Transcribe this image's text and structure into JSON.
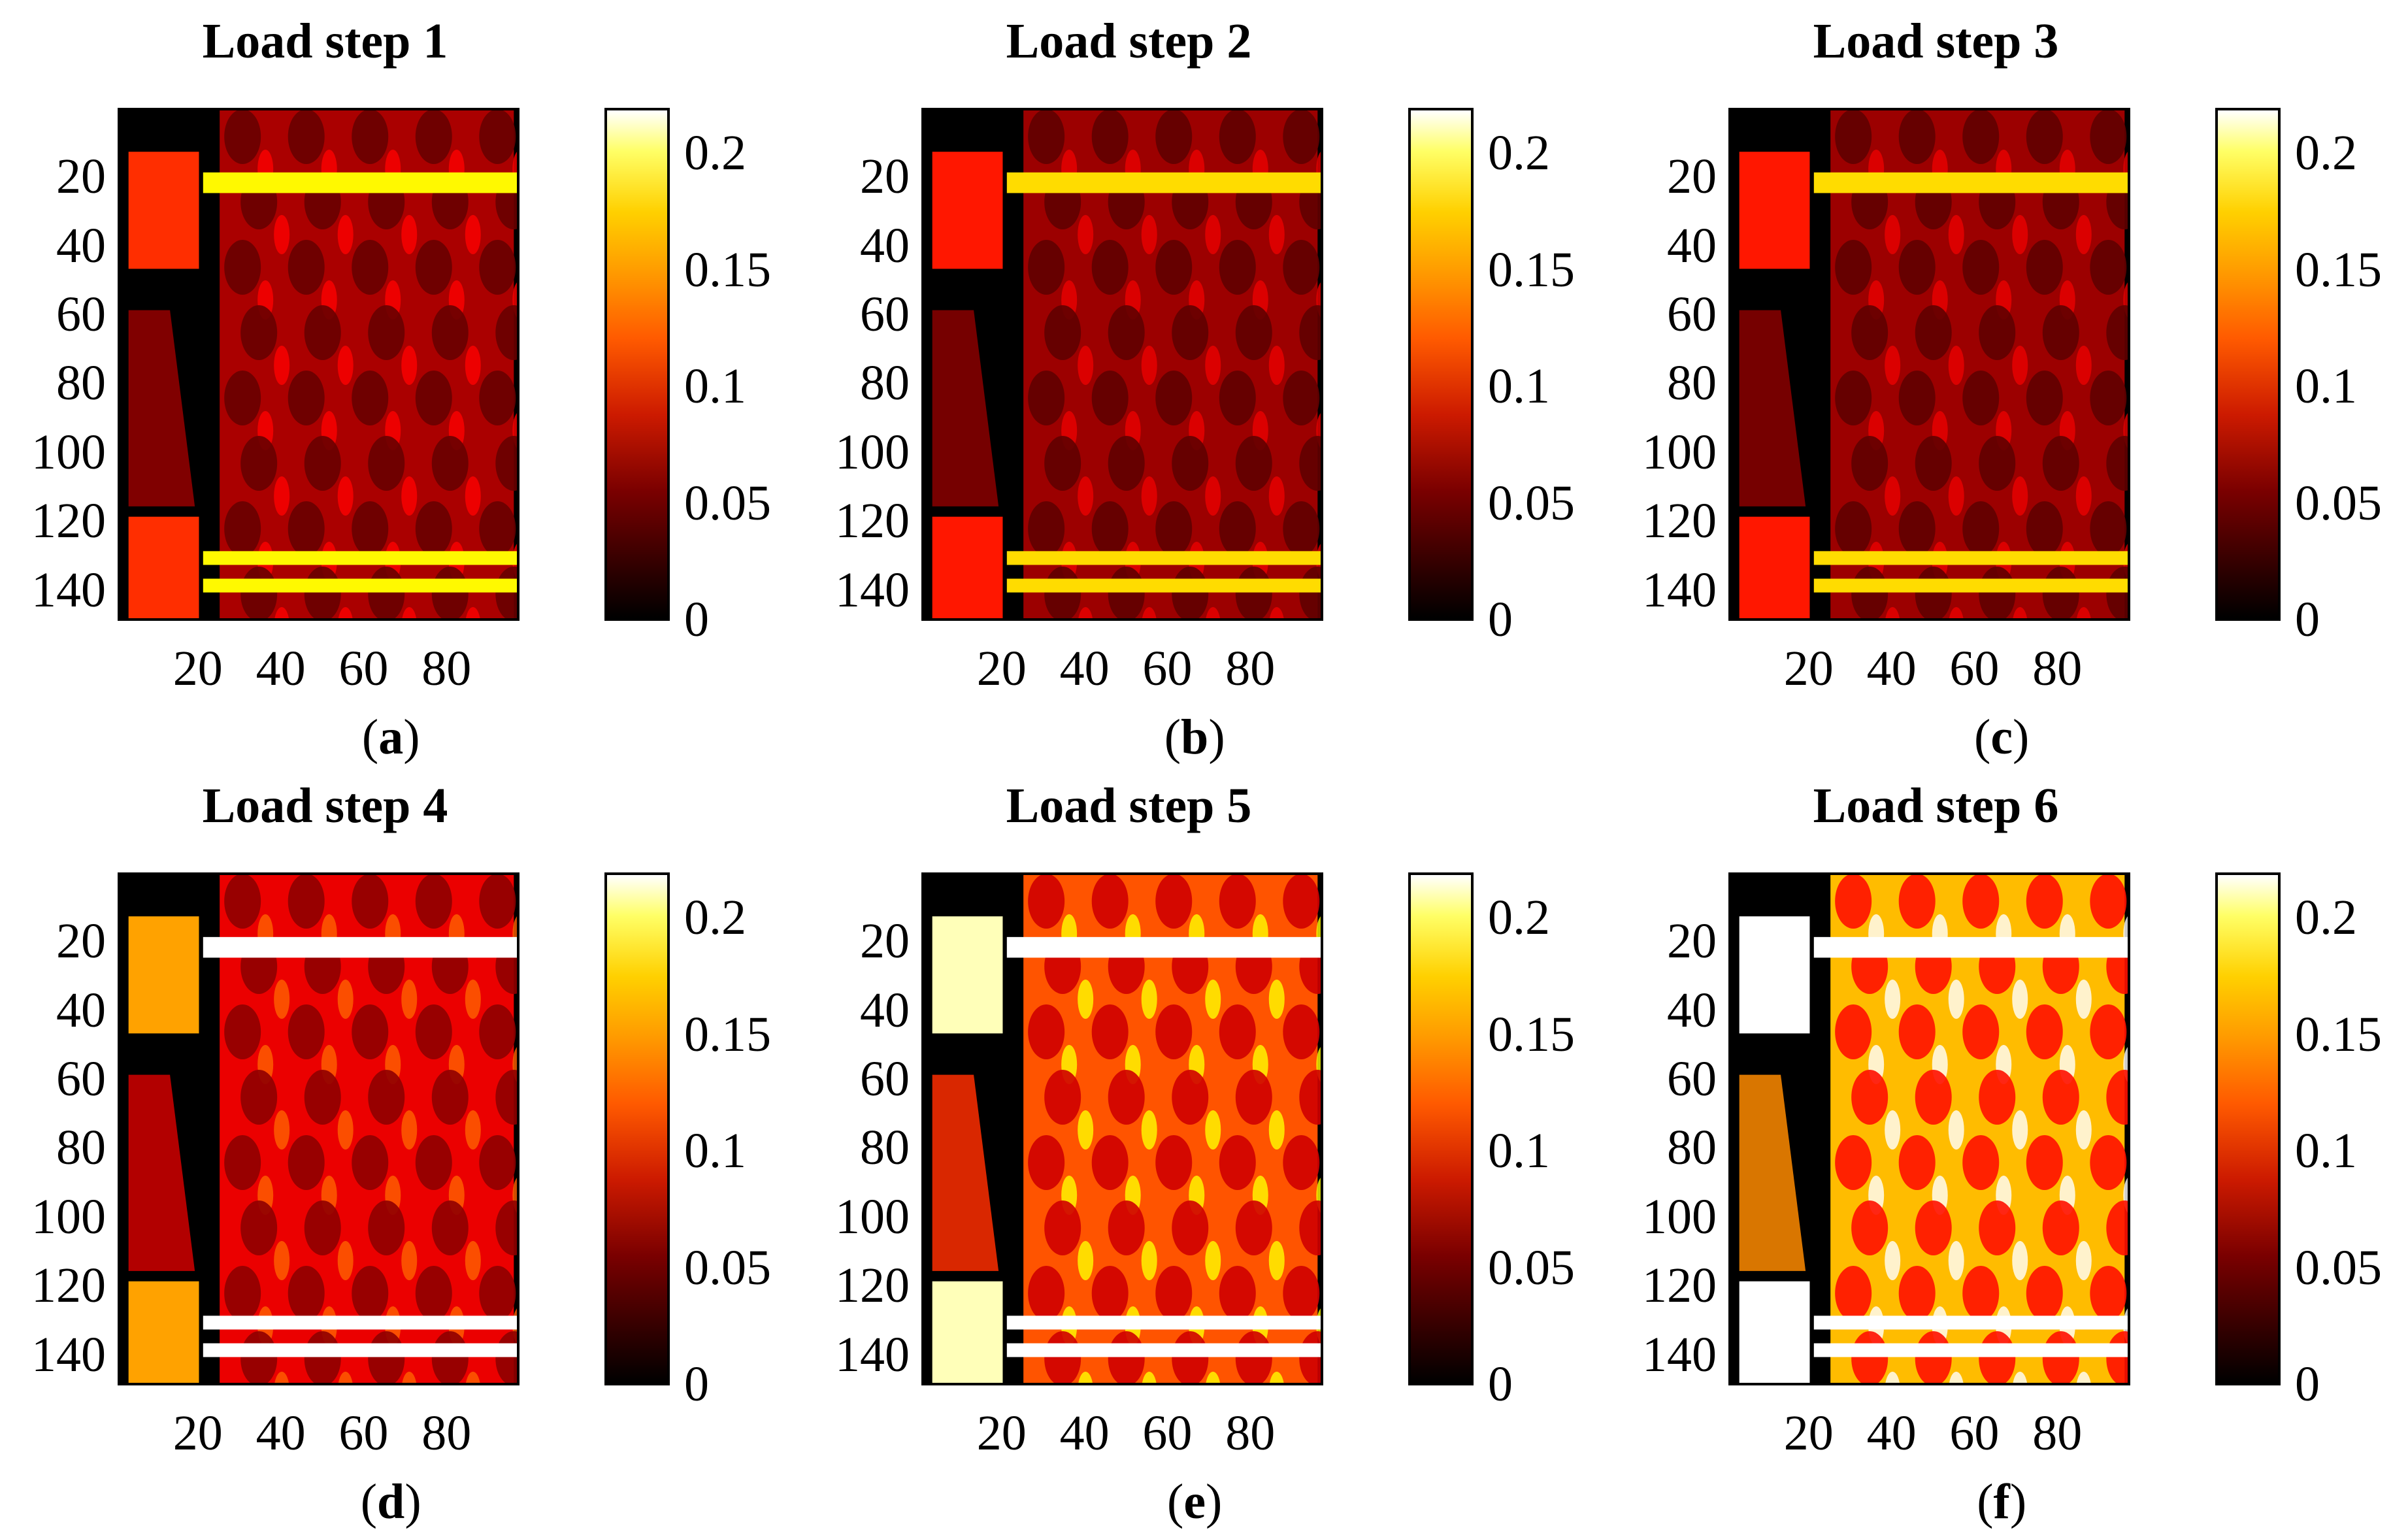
{
  "chart_data": [
    {
      "type": "heatmap",
      "title": "Load step 1",
      "panel_label": "a",
      "xticks": [
        "20",
        "40",
        "60",
        "80"
      ],
      "yticks": [
        "20",
        "40",
        "60",
        "80",
        "100",
        "120",
        "140"
      ],
      "xlim": [
        0,
        97
      ],
      "ylim": [
        0,
        149
      ],
      "colorbar": {
        "ticks": [
          "0",
          "0.05",
          "0.1",
          "0.15",
          "0.2"
        ],
        "range": [
          0,
          0.22
        ],
        "colormap": "hot"
      },
      "mean_level": 0.065
    },
    {
      "type": "heatmap",
      "title": "Load step 2",
      "panel_label": "b",
      "xticks": [
        "20",
        "40",
        "60",
        "80"
      ],
      "yticks": [
        "20",
        "40",
        "60",
        "80",
        "100",
        "120",
        "140"
      ],
      "xlim": [
        0,
        97
      ],
      "ylim": [
        0,
        149
      ],
      "colorbar": {
        "ticks": [
          "0",
          "0.05",
          "0.1",
          "0.15",
          "0.2"
        ],
        "range": [
          0,
          0.22
        ],
        "colormap": "hot"
      },
      "mean_level": 0.06
    },
    {
      "type": "heatmap",
      "title": "Load step 3",
      "panel_label": "c",
      "xticks": [
        "20",
        "40",
        "60",
        "80"
      ],
      "yticks": [
        "20",
        "40",
        "60",
        "80",
        "100",
        "120",
        "140"
      ],
      "xlim": [
        0,
        97
      ],
      "ylim": [
        0,
        149
      ],
      "colorbar": {
        "ticks": [
          "0",
          "0.05",
          "0.1",
          "0.15",
          "0.2"
        ],
        "range": [
          0,
          0.22
        ],
        "colormap": "hot"
      },
      "mean_level": 0.06
    },
    {
      "type": "heatmap",
      "title": "Load step 4",
      "panel_label": "d",
      "xticks": [
        "20",
        "40",
        "60",
        "80"
      ],
      "yticks": [
        "20",
        "40",
        "60",
        "80",
        "100",
        "120",
        "140"
      ],
      "xlim": [
        0,
        97
      ],
      "ylim": [
        0,
        149
      ],
      "colorbar": {
        "ticks": [
          "0",
          "0.05",
          "0.1",
          "0.15",
          "0.2"
        ],
        "range": [
          0,
          0.22
        ],
        "colormap": "hot"
      },
      "mean_level": 0.09
    },
    {
      "type": "heatmap",
      "title": "Load step 5",
      "panel_label": "e",
      "xticks": [
        "20",
        "40",
        "60",
        "80"
      ],
      "yticks": [
        "20",
        "40",
        "60",
        "80",
        "100",
        "120",
        "140"
      ],
      "xlim": [
        0,
        97
      ],
      "ylim": [
        0,
        149
      ],
      "colorbar": {
        "ticks": [
          "0",
          "0.05",
          "0.1",
          "0.15",
          "0.2"
        ],
        "range": [
          0,
          0.22
        ],
        "colormap": "hot"
      },
      "mean_level": 0.13
    },
    {
      "type": "heatmap",
      "title": "Load step 6",
      "panel_label": "f",
      "xticks": [
        "20",
        "40",
        "60",
        "80"
      ],
      "yticks": [
        "20",
        "40",
        "60",
        "80",
        "100",
        "120",
        "140"
      ],
      "xlim": [
        0,
        97
      ],
      "ylim": [
        0,
        149
      ],
      "colorbar": {
        "ticks": [
          "0",
          "0.05",
          "0.1",
          "0.15",
          "0.2"
        ],
        "range": [
          0,
          0.22
        ],
        "colormap": "hot"
      },
      "mean_level": 0.17
    }
  ]
}
